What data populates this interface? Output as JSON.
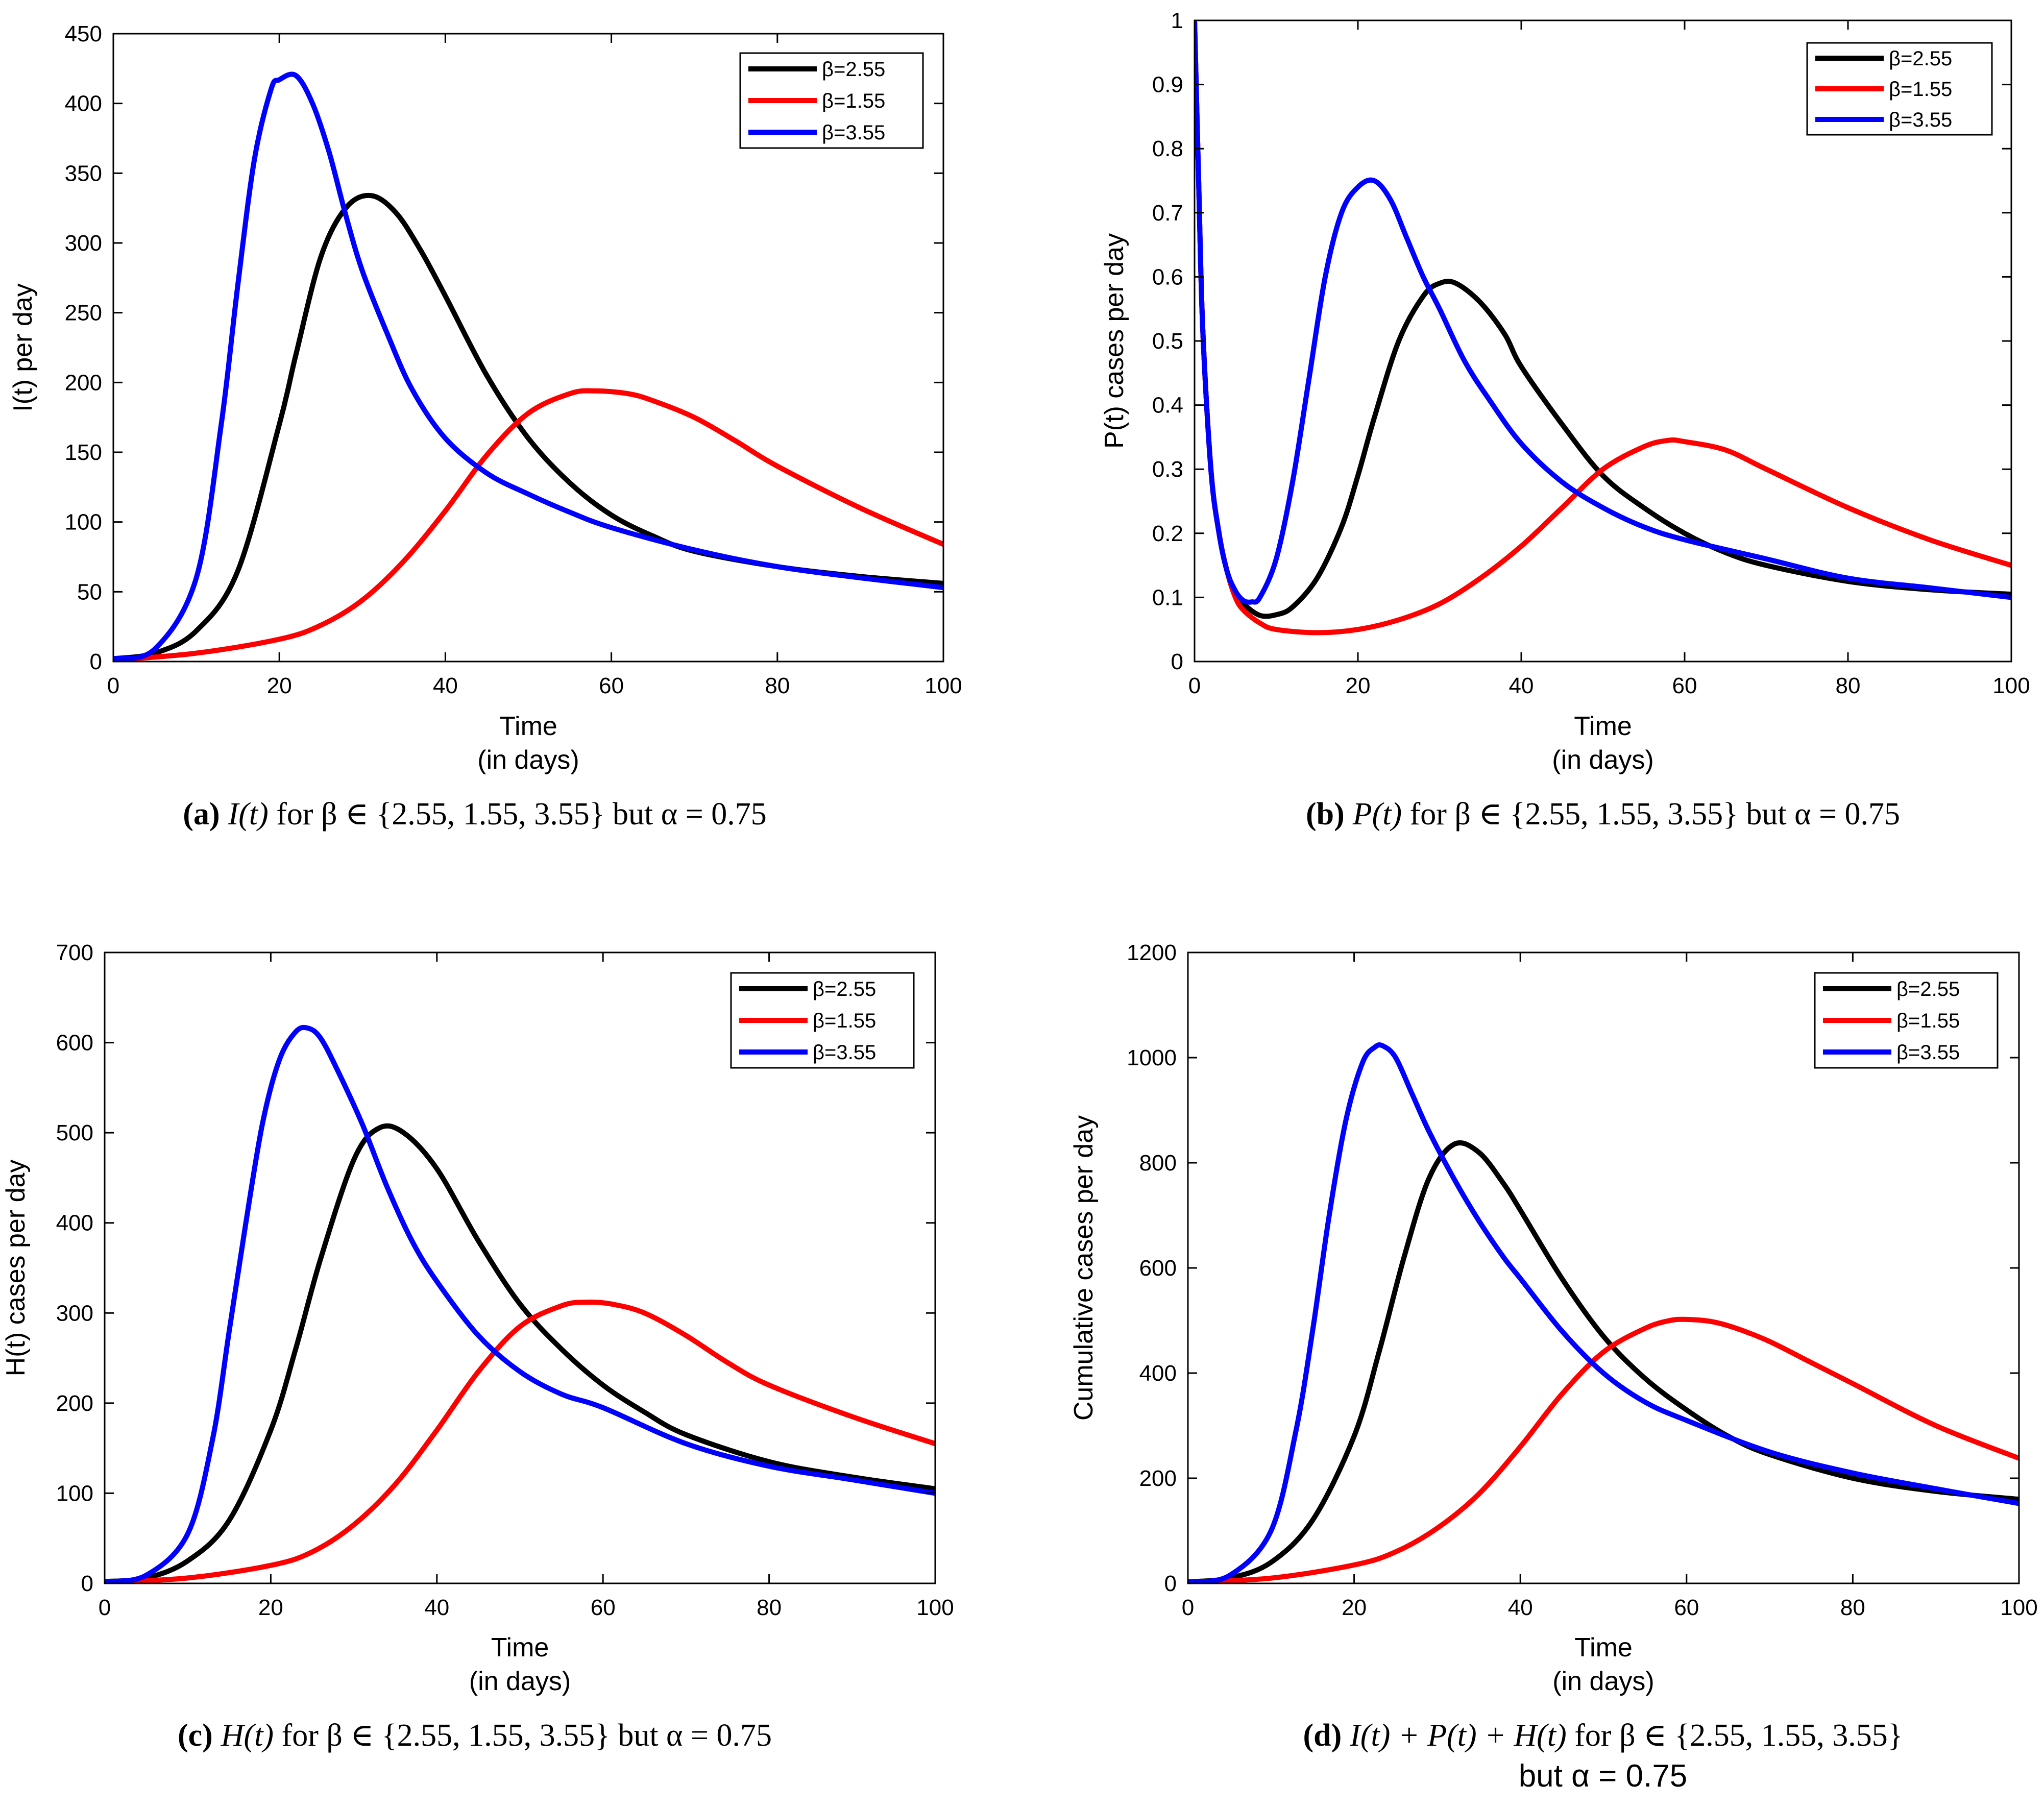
{
  "colors": {
    "beta_2_55": "#000000",
    "beta_1_55": "#ff0000",
    "beta_3_55": "#0000ff"
  },
  "chart_data": [
    {
      "type": "line",
      "panel": "a",
      "caption": {
        "letter": "(a)",
        "math": "I(t)",
        "rest": " for β ∈ {2.55, 1.55, 3.55} but α = 0.75",
        "rest2": ""
      },
      "xlabel": "Time",
      "xlabel2": "(in days)",
      "ylabel": "I(t) per day",
      "xlim": [
        0,
        100
      ],
      "ylim": [
        0,
        450
      ],
      "xticks": [
        0,
        20,
        40,
        60,
        80,
        100
      ],
      "yticks": [
        0,
        50,
        100,
        150,
        200,
        250,
        300,
        350,
        400,
        450
      ],
      "legend_position": "top-right",
      "series": [
        {
          "name": "β=2.55",
          "color": "#000000",
          "x": [
            0,
            5,
            10,
            15,
            20,
            22,
            25,
            28,
            31,
            34,
            37,
            40,
            45,
            50,
            55,
            60,
            65,
            70,
            80,
            90,
            100
          ],
          "y": [
            2,
            6,
            22,
            65,
            170,
            220,
            290,
            325,
            334,
            322,
            295,
            262,
            205,
            160,
            128,
            105,
            90,
            79,
            68,
            61,
            56
          ]
        },
        {
          "name": "β=1.55",
          "color": "#ff0000",
          "x": [
            0,
            10,
            20,
            25,
            30,
            35,
            40,
            45,
            50,
            55,
            58,
            62,
            65,
            70,
            75,
            80,
            90,
            100
          ],
          "y": [
            1,
            6,
            16,
            26,
            44,
            72,
            108,
            148,
            178,
            192,
            194,
            192,
            187,
            175,
            158,
            140,
            110,
            84
          ]
        },
        {
          "name": "β=3.55",
          "color": "#0000ff",
          "x": [
            0,
            5,
            10,
            13,
            15,
            17,
            19,
            20,
            22,
            24,
            26,
            28,
            30,
            33,
            36,
            40,
            45,
            50,
            55,
            60,
            70,
            80,
            90,
            100
          ],
          "y": [
            2,
            9,
            60,
            170,
            270,
            360,
            410,
            417,
            420,
            400,
            365,
            320,
            280,
            235,
            195,
            160,
            135,
            120,
            107,
            96,
            80,
            68,
            60,
            53
          ]
        }
      ]
    },
    {
      "type": "line",
      "panel": "b",
      "caption": {
        "letter": "(b)",
        "math": "P(t)",
        "rest": " for β ∈ {2.55, 1.55, 3.55} but α = 0.75",
        "rest2": ""
      },
      "xlabel": "Time",
      "xlabel2": "(in days)",
      "ylabel": "P(t) cases per day",
      "xlim": [
        0,
        100
      ],
      "ylim": [
        0,
        1
      ],
      "xticks": [
        0,
        20,
        40,
        60,
        80,
        100
      ],
      "yticks": [
        0,
        0.1,
        0.2,
        0.3,
        0.4,
        0.5,
        0.6,
        0.7,
        0.8,
        0.9,
        1
      ],
      "legend_position": "top-right",
      "series": [
        {
          "name": "β=2.55",
          "color": "#000000",
          "x": [
            0,
            0.5,
            1,
            2,
            3,
            4,
            5,
            6,
            8,
            10,
            12,
            15,
            18,
            20,
            22,
            25,
            28,
            30,
            32,
            35,
            38,
            40,
            45,
            50,
            55,
            60,
            65,
            70,
            80,
            90,
            100
          ],
          "y": [
            1.0,
            0.75,
            0.52,
            0.3,
            0.2,
            0.14,
            0.11,
            0.09,
            0.072,
            0.073,
            0.085,
            0.13,
            0.21,
            0.29,
            0.38,
            0.5,
            0.57,
            0.59,
            0.59,
            0.56,
            0.51,
            0.46,
            0.37,
            0.29,
            0.24,
            0.2,
            0.17,
            0.15,
            0.125,
            0.112,
            0.105
          ]
        },
        {
          "name": "β=1.55",
          "color": "#ff0000",
          "x": [
            0,
            0.5,
            1,
            2,
            3,
            4,
            5,
            6,
            8,
            10,
            15,
            20,
            25,
            30,
            35,
            40,
            45,
            50,
            55,
            58,
            60,
            65,
            70,
            80,
            90,
            100
          ],
          "y": [
            1.0,
            0.75,
            0.52,
            0.3,
            0.2,
            0.14,
            0.1,
            0.08,
            0.06,
            0.05,
            0.045,
            0.05,
            0.065,
            0.09,
            0.13,
            0.18,
            0.24,
            0.3,
            0.335,
            0.345,
            0.343,
            0.33,
            0.3,
            0.24,
            0.19,
            0.15
          ]
        },
        {
          "name": "β=3.55",
          "color": "#0000ff",
          "x": [
            0,
            0.5,
            1,
            2,
            3,
            4,
            5,
            6,
            7,
            8,
            10,
            12,
            14,
            16,
            18,
            20,
            22,
            24,
            26,
            28,
            30,
            33,
            36,
            40,
            45,
            50,
            55,
            60,
            70,
            80,
            90,
            100
          ],
          "y": [
            1.0,
            0.75,
            0.52,
            0.3,
            0.2,
            0.14,
            0.11,
            0.095,
            0.093,
            0.1,
            0.16,
            0.28,
            0.44,
            0.6,
            0.7,
            0.74,
            0.75,
            0.72,
            0.66,
            0.6,
            0.55,
            0.47,
            0.41,
            0.34,
            0.28,
            0.24,
            0.21,
            0.19,
            0.16,
            0.13,
            0.115,
            0.1
          ]
        }
      ]
    },
    {
      "type": "line",
      "panel": "c",
      "caption": {
        "letter": "(c)",
        "math": "H(t)",
        "rest": " for β ∈ {2.55, 1.55, 3.55} but α = 0.75",
        "rest2": ""
      },
      "xlabel": "Time",
      "xlabel2": "(in days)",
      "ylabel": "H(t) cases per day",
      "xlim": [
        0,
        100
      ],
      "ylim": [
        0,
        700
      ],
      "xticks": [
        0,
        20,
        40,
        60,
        80,
        100
      ],
      "yticks": [
        0,
        100,
        200,
        300,
        400,
        500,
        600,
        700
      ],
      "legend_position": "top-right",
      "series": [
        {
          "name": "β=2.55",
          "color": "#000000",
          "x": [
            0,
            5,
            10,
            15,
            20,
            23,
            26,
            30,
            33,
            36,
            40,
            45,
            50,
            55,
            60,
            65,
            70,
            80,
            90,
            100
          ],
          "y": [
            2,
            6,
            25,
            70,
            170,
            260,
            360,
            470,
            505,
            500,
            460,
            380,
            310,
            260,
            220,
            190,
            165,
            135,
            118,
            105
          ]
        },
        {
          "name": "β=1.55",
          "color": "#ff0000",
          "x": [
            0,
            10,
            20,
            25,
            30,
            35,
            40,
            45,
            50,
            55,
            58,
            61,
            65,
            70,
            75,
            80,
            90,
            100
          ],
          "y": [
            1,
            6,
            20,
            35,
            65,
            110,
            170,
            235,
            285,
            308,
            312,
            310,
            300,
            275,
            245,
            220,
            185,
            155
          ]
        },
        {
          "name": "β=3.55",
          "color": "#0000ff",
          "x": [
            0,
            5,
            10,
            13,
            15,
            17,
            19,
            21,
            23,
            24.5,
            26,
            28,
            31,
            34,
            37,
            40,
            45,
            50,
            55,
            60,
            70,
            80,
            90,
            100
          ],
          "y": [
            2,
            9,
            55,
            160,
            280,
            400,
            510,
            580,
            612,
            616,
            605,
            570,
            510,
            440,
            380,
            335,
            275,
            235,
            210,
            195,
            155,
            130,
            115,
            100
          ]
        }
      ]
    },
    {
      "type": "line",
      "panel": "d",
      "caption": {
        "letter": "(d)",
        "math": "I(t) + P(t) + H(t)",
        "rest": " for β ∈ {2.55, 1.55, 3.55}",
        "rest2": "but α = 0.75"
      },
      "xlabel": "Time",
      "xlabel2": "(in days)",
      "ylabel": "Cumulative cases per day",
      "xlim": [
        0,
        100
      ],
      "ylim": [
        0,
        1200
      ],
      "xticks": [
        0,
        20,
        40,
        60,
        80,
        100
      ],
      "yticks": [
        0,
        200,
        400,
        600,
        800,
        1000,
        1200
      ],
      "legend_position": "top-right",
      "series": [
        {
          "name": "β=2.55",
          "color": "#000000",
          "x": [
            0,
            5,
            10,
            15,
            20,
            23,
            26,
            29,
            32,
            35,
            38,
            40,
            45,
            50,
            55,
            60,
            65,
            70,
            80,
            90,
            100
          ],
          "y": [
            3,
            10,
            40,
            120,
            280,
            440,
            620,
            770,
            835,
            820,
            760,
            710,
            580,
            470,
            390,
            330,
            280,
            245,
            200,
            175,
            160
          ]
        },
        {
          "name": "β=1.55",
          "color": "#ff0000",
          "x": [
            0,
            10,
            20,
            25,
            30,
            35,
            40,
            45,
            50,
            55,
            58,
            60,
            63,
            66,
            70,
            75,
            80,
            90,
            100
          ],
          "y": [
            2,
            10,
            35,
            60,
            105,
            170,
            260,
            360,
            440,
            485,
            500,
            502,
            498,
            485,
            460,
            420,
            380,
            300,
            238
          ]
        },
        {
          "name": "β=3.55",
          "color": "#0000ff",
          "x": [
            0,
            5,
            10,
            13,
            15,
            17,
            19,
            21,
            22.5,
            23.5,
            25,
            27,
            29,
            32,
            35,
            38,
            40,
            45,
            50,
            55,
            60,
            70,
            80,
            90,
            100
          ],
          "y": [
            3,
            15,
            100,
            290,
            480,
            700,
            880,
            990,
            1020,
            1022,
            1000,
            930,
            860,
            770,
            690,
            620,
            580,
            480,
            400,
            345,
            310,
            250,
            210,
            180,
            152
          ]
        }
      ]
    }
  ]
}
